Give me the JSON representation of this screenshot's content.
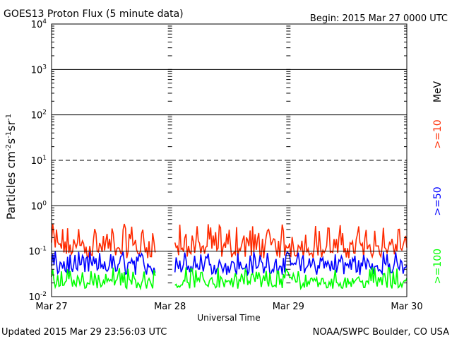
{
  "header": {
    "title": "GOES13 Proton Flux (5 minute data)",
    "begin": "Begin: 2015 Mar 27 0000 UTC"
  },
  "footer": {
    "updated": "Updated 2015 Mar 29 23:56:03 UTC",
    "credit": "NOAA/SWPC Boulder, CO USA"
  },
  "colors": {
    "ge10": "#ff2a00",
    "ge50": "#0000ff",
    "ge100": "#00ff00",
    "grid": "#000000"
  },
  "chart_data": {
    "type": "line",
    "title": "GOES13 Proton Flux (5 minute data)",
    "xlabel": "Universal Time",
    "ylabel": {
      "base": "Particles cm",
      "sup1": "-2",
      "mid1": "s",
      "sup2": "-1",
      "mid2": "sr",
      "sup3": "-1"
    },
    "yscale": "log",
    "ylim": [
      0.01,
      10000
    ],
    "y_ticks": [
      {
        "base": "10",
        "exp": "4",
        "value": 10000
      },
      {
        "base": "10",
        "exp": "3",
        "value": 1000
      },
      {
        "base": "10",
        "exp": "2",
        "value": 100
      },
      {
        "base": "10",
        "exp": "1",
        "value": 10
      },
      {
        "base": "10",
        "exp": "0",
        "value": 1
      },
      {
        "base": "10",
        "exp": "-1",
        "value": 0.1
      },
      {
        "base": "10",
        "exp": "-2",
        "value": 0.01
      }
    ],
    "x_ticks": [
      "Mar 27",
      "Mar 28",
      "Mar 29",
      "Mar 30"
    ],
    "unit_label": "MeV",
    "data_gap": [
      "2015-03-27 21:00",
      "2015-03-28 01:00"
    ],
    "series": [
      {
        "name": ">=10",
        "color": "#ff2a00",
        "min": 0.07,
        "max": 0.4,
        "typical": 0.13
      },
      {
        "name": ">=50",
        "color": "#0000ff",
        "min": 0.03,
        "max": 0.1,
        "typical": 0.05
      },
      {
        "name": ">=100",
        "color": "#00ff00",
        "min": 0.015,
        "max": 0.045,
        "typical": 0.022
      }
    ]
  }
}
